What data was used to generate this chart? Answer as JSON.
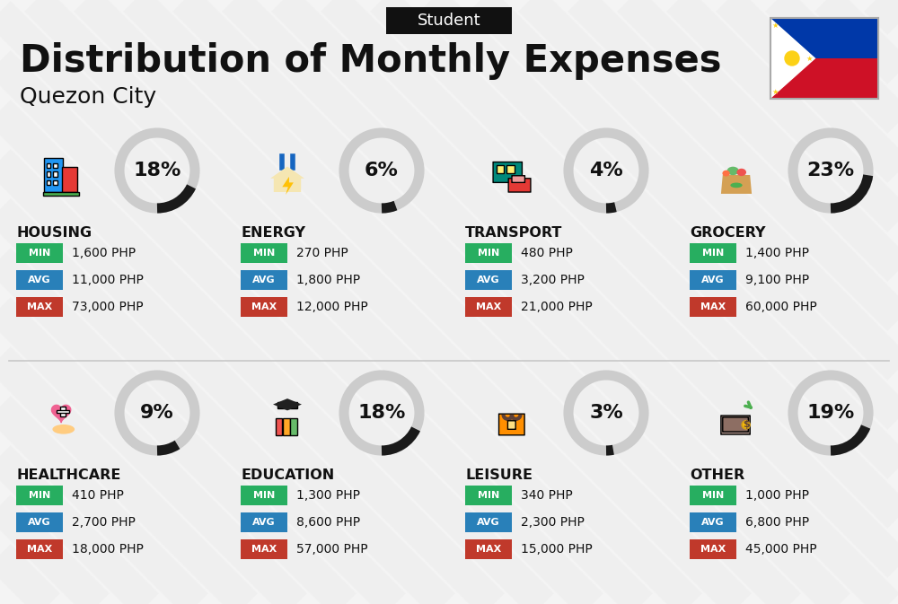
{
  "title": "Distribution of Monthly Expenses",
  "subtitle": "Quezon City",
  "tag": "Student",
  "bg_color": "#ebebeb",
  "categories": [
    {
      "name": "HOUSING",
      "pct": 18,
      "min_val": "1,600 PHP",
      "avg_val": "11,000 PHP",
      "max_val": "73,000 PHP"
    },
    {
      "name": "ENERGY",
      "pct": 6,
      "min_val": "270 PHP",
      "avg_val": "1,800 PHP",
      "max_val": "12,000 PHP"
    },
    {
      "name": "TRANSPORT",
      "pct": 4,
      "min_val": "480 PHP",
      "avg_val": "3,200 PHP",
      "max_val": "21,000 PHP"
    },
    {
      "name": "GROCERY",
      "pct": 23,
      "min_val": "1,400 PHP",
      "avg_val": "9,100 PHP",
      "max_val": "60,000 PHP"
    },
    {
      "name": "HEALTHCARE",
      "pct": 9,
      "min_val": "410 PHP",
      "avg_val": "2,700 PHP",
      "max_val": "18,000 PHP"
    },
    {
      "name": "EDUCATION",
      "pct": 18,
      "min_val": "1,300 PHP",
      "avg_val": "8,600 PHP",
      "max_val": "57,000 PHP"
    },
    {
      "name": "LEISURE",
      "pct": 3,
      "min_val": "340 PHP",
      "avg_val": "2,300 PHP",
      "max_val": "15,000 PHP"
    },
    {
      "name": "OTHER",
      "pct": 19,
      "min_val": "1,000 PHP",
      "avg_val": "6,800 PHP",
      "max_val": "45,000 PHP"
    }
  ],
  "min_color": "#27ae60",
  "avg_color": "#2980b9",
  "max_color": "#c0392b",
  "donut_fg": "#1a1a1a",
  "donut_bg": "#cccccc",
  "text_dark": "#111111",
  "tag_bg": "#111111",
  "tag_color": "#ffffff",
  "stripe_color": "#d8d8d8",
  "divider_color": "#c8c8c8",
  "flag_blue": "#0038a8",
  "flag_red": "#ce1126",
  "flag_sun": "#fcd116"
}
